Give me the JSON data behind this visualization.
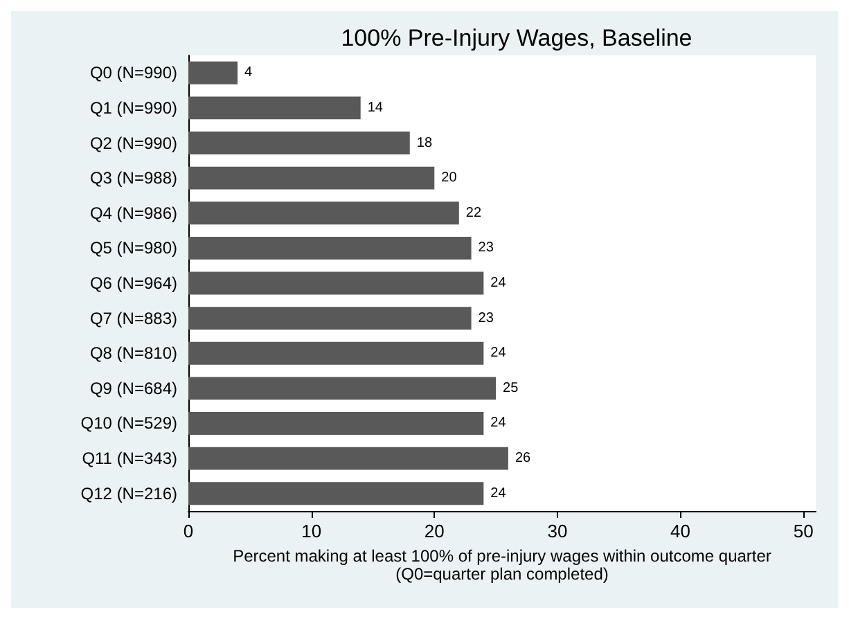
{
  "chart_data": {
    "type": "bar",
    "orientation": "horizontal",
    "title": "100% Pre-Injury Wages, Baseline",
    "xlabel": "Percent making at least 100% of pre-injury wages within outcome quarter\n(Q0=quarter plan completed)",
    "categories": [
      "Q0 (N=990)",
      "Q1 (N=990)",
      "Q2 (N=990)",
      "Q3 (N=988)",
      "Q4 (N=986)",
      "Q5 (N=980)",
      "Q6 (N=964)",
      "Q7 (N=883)",
      "Q8 (N=810)",
      "Q9 (N=684)",
      "Q10 (N=529)",
      "Q11 (N=343)",
      "Q12 (N=216)"
    ],
    "values": [
      4,
      14,
      18,
      20,
      22,
      23,
      24,
      23,
      24,
      25,
      24,
      26,
      24
    ],
    "color": "#595959",
    "xlim": [
      0,
      51
    ],
    "xticks": [
      0,
      10,
      20,
      30,
      40,
      50
    ],
    "grid": false,
    "data_labels": true
  }
}
